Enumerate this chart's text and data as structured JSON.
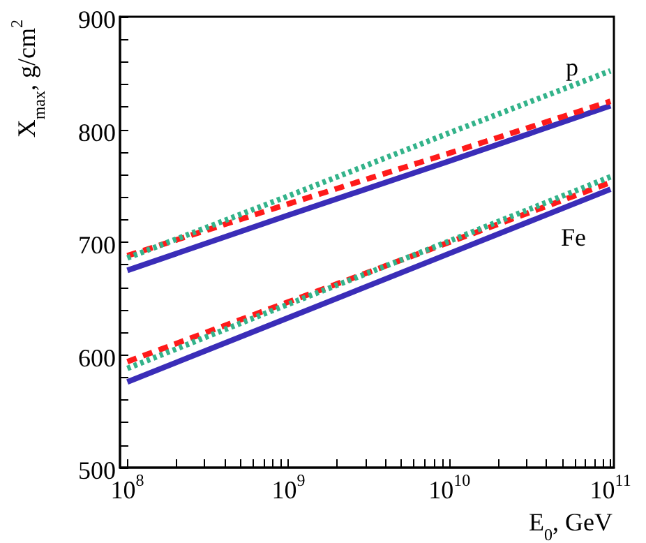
{
  "chart_data": {
    "type": "line",
    "xlabel": "E$_{0}$, GeV",
    "ylabel": "X$_{max}$, g/cm$^{2}$",
    "log": "x",
    "grid": false,
    "marker": "none",
    "xlim": [
      90000000.0,
      105000000000.0
    ],
    "ylim": [
      500,
      900
    ],
    "xticks": [
      {
        "value": 100000000.0,
        "label": "10$^{8}$"
      },
      {
        "value": 200000000.0,
        "label": null
      },
      {
        "value": 300000000.0,
        "label": null
      },
      {
        "value": 400000000.0,
        "label": null
      },
      {
        "value": 500000000.0,
        "label": null
      },
      {
        "value": 600000000.0,
        "label": null
      },
      {
        "value": 700000000.0,
        "label": null
      },
      {
        "value": 800000000.0,
        "label": null
      },
      {
        "value": 900000000.0,
        "label": null
      },
      {
        "value": 1000000000.0,
        "label": "10$^{9}$"
      },
      {
        "value": 2000000000.0,
        "label": null
      },
      {
        "value": 3000000000.0,
        "label": null
      },
      {
        "value": 4000000000.0,
        "label": null
      },
      {
        "value": 5000000000.0,
        "label": null
      },
      {
        "value": 6000000000.0,
        "label": null
      },
      {
        "value": 7000000000.0,
        "label": null
      },
      {
        "value": 8000000000.0,
        "label": null
      },
      {
        "value": 9000000000.0,
        "label": null
      },
      {
        "value": 10000000000.0,
        "label": "10$^{10}$"
      },
      {
        "value": 20000000000.0,
        "label": null
      },
      {
        "value": 30000000000.0,
        "label": null
      },
      {
        "value": 40000000000.0,
        "label": null
      },
      {
        "value": 50000000000.0,
        "label": null
      },
      {
        "value": 60000000000.0,
        "label": null
      },
      {
        "value": 70000000000.0,
        "label": null
      },
      {
        "value": 80000000000.0,
        "label": null
      },
      {
        "value": 90000000000.0,
        "label": null
      },
      {
        "value": 100000000000.0,
        "label": "10$^{11}$"
      }
    ],
    "yticks": [
      500,
      {
        "value": 520,
        "label": null
      },
      {
        "value": 540,
        "label": null
      },
      {
        "value": 560,
        "label": null
      },
      {
        "value": 580,
        "label": null
      },
      600,
      {
        "value": 620,
        "label": null
      },
      {
        "value": 640,
        "label": null
      },
      {
        "value": 660,
        "label": null
      },
      {
        "value": 680,
        "label": null
      },
      700,
      {
        "value": 720,
        "label": null
      },
      {
        "value": 740,
        "label": null
      },
      {
        "value": 760,
        "label": null
      },
      {
        "value": 780,
        "label": null
      },
      800,
      {
        "value": 820,
        "label": null
      },
      {
        "value": 840,
        "label": null
      },
      {
        "value": 860,
        "label": null
      },
      {
        "value": 880,
        "label": null
      },
      900
    ],
    "x": [
      100000000.0,
      1000000000.0,
      10000000000.0,
      100000000000.0
    ],
    "series": [
      {
        "color": "#3a2db8",
        "line_style": "solid",
        "values": [
          675,
          724,
          772,
          821
        ]
      },
      {
        "color": "#ff1a1a",
        "line_style": "dashed",
        "values": [
          688,
          734,
          779,
          825
        ]
      },
      {
        "color": "#33b38a",
        "line_style": "dotted",
        "values": [
          686,
          741,
          797,
          852
        ]
      },
      {
        "color": "#3a2db8",
        "line_style": "solid",
        "values": [
          576,
          633,
          690,
          747
        ]
      },
      {
        "color": "#ff1a1a",
        "line_style": "dashed",
        "values": [
          594,
          647,
          700,
          753
        ]
      },
      {
        "color": "#33b38a",
        "line_style": "dotted",
        "values": [
          588,
          645,
          701,
          758
        ]
      }
    ],
    "annotations": [
      "p",
      "Fe"
    ]
  }
}
